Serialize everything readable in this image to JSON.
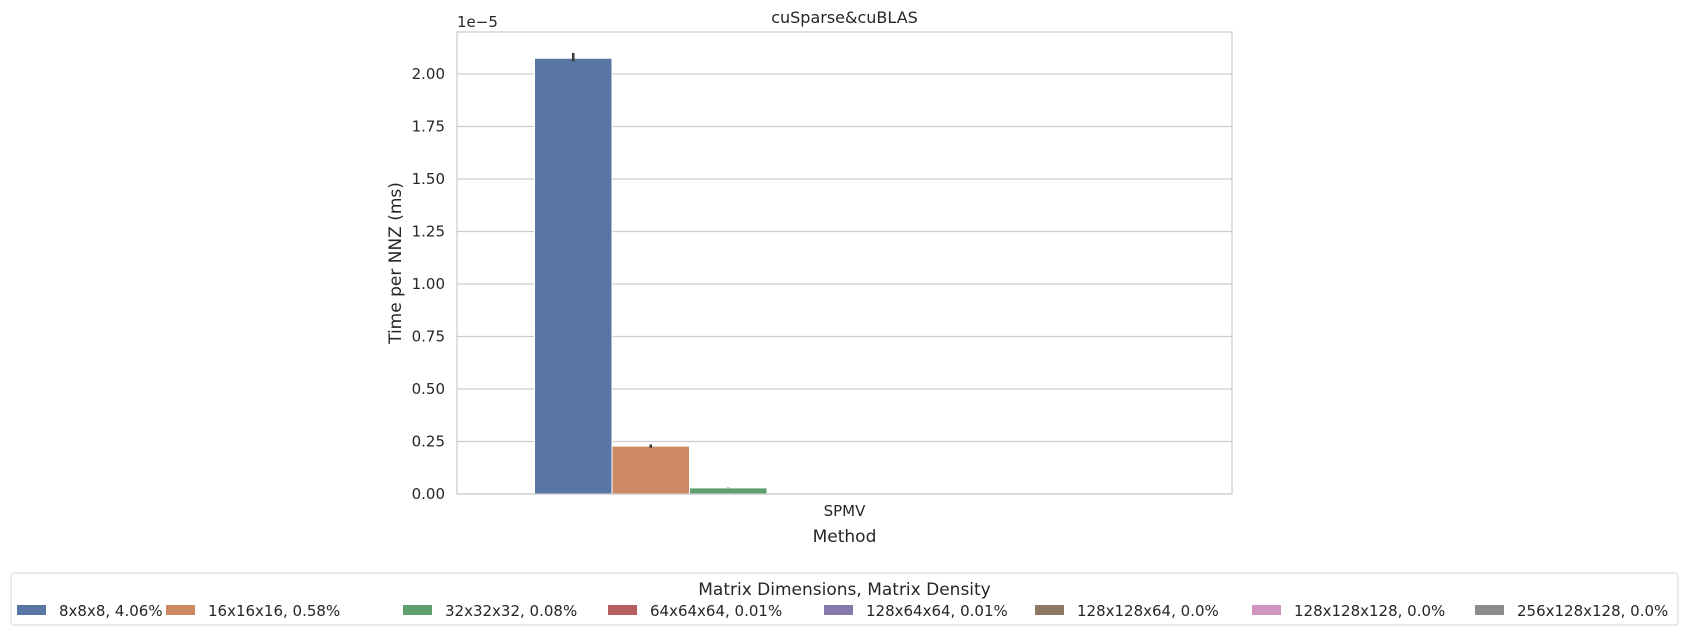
{
  "chart_data": {
    "type": "bar",
    "title": "cuSparse&cuBLAS",
    "xlabel": "Method",
    "ylabel": "Time per NNZ (ms)",
    "y_offset_label": "1e−5",
    "y_scale_exponent": -5,
    "ylim": [
      0,
      2.2e-05
    ],
    "yticks": [
      0,
      0.25,
      0.5,
      0.75,
      1.0,
      1.25,
      1.5,
      1.75,
      2.0
    ],
    "ytick_labels": [
      "0.00",
      "0.25",
      "0.50",
      "0.75",
      "1.00",
      "1.25",
      "1.50",
      "1.75",
      "2.00"
    ],
    "categories": [
      "SPMV"
    ],
    "grid": true,
    "legend": {
      "title": "Matrix Dimensions, Matrix Density",
      "placement": "bottom-center"
    },
    "series": [
      {
        "name": "8x8x8, 4.06%",
        "values": [
          2.075e-05
        ],
        "error": [
          [
            2.06e-05,
            2.1e-05
          ]
        ],
        "color": "#5875a4"
      },
      {
        "name": "16x16x16, 0.58%",
        "values": [
          2.28e-06
        ],
        "error": [
          [
            2.2e-06,
            2.36e-06
          ]
        ],
        "color": "#cc8963"
      },
      {
        "name": "32x32x32, 0.08%",
        "values": [
          2.9e-07
        ],
        "error": [
          [
            2.8e-07,
            3e-07
          ]
        ],
        "color": "#5f9e6e"
      },
      {
        "name": "64x64x64, 0.01%",
        "values": [
          0.0
        ],
        "error": null,
        "color": "#b55d60"
      },
      {
        "name": "128x64x64, 0.01%",
        "values": [
          0.0
        ],
        "error": null,
        "color": "#857aab"
      },
      {
        "name": "128x128x64, 0.0%",
        "values": [
          0.0
        ],
        "error": null,
        "color": "#8d7866"
      },
      {
        "name": "128x128x128, 0.0%",
        "values": [
          0.0
        ],
        "error": null,
        "color": "#d095bf"
      },
      {
        "name": "256x128x128, 0.0%",
        "values": [
          0.0
        ],
        "error": null,
        "color": "#8c8c8c"
      }
    ]
  }
}
